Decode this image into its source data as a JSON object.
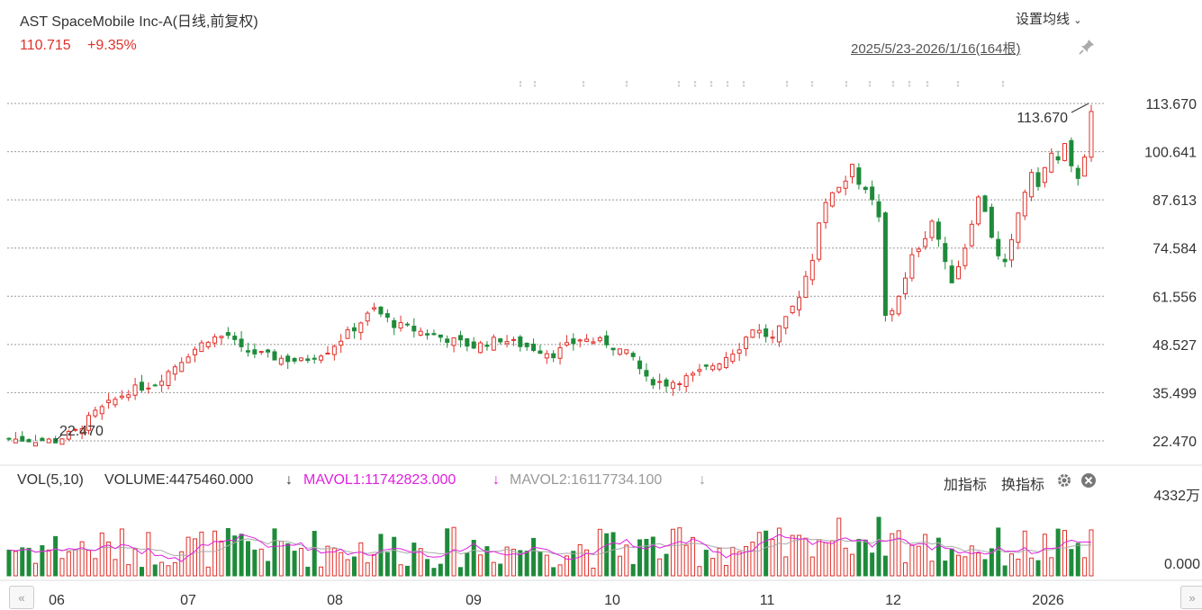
{
  "header": {
    "title": "AST SpaceMobile Inc-A(日线,前复权)",
    "price": "110.715",
    "change_pct": "+9.35%",
    "ma_setting": "设置均线",
    "range": "2025/5/23-2026/1/16(164根)"
  },
  "volume_panel": {
    "vol_label": "VOL(5,10)",
    "volume": "VOLUME:4475460.000",
    "mavol1": "MAVOL1:11742823.000",
    "mavol2": "MAVOL2:16117734.100",
    "add_indicator": "加指标",
    "switch_indicator": "换指标",
    "ymax_label": "4332万",
    "ymin_label": "0.000"
  },
  "colors": {
    "up": "#e0312a",
    "down": "#1e8b3a",
    "mavol1": "#e020e0",
    "mavol2": "#aaaaaa"
  },
  "chart_data": {
    "type": "candlestick",
    "y_ticks": [
      "113.670",
      "100.641",
      "87.613",
      "74.584",
      "61.556",
      "48.527",
      "35.499",
      "22.470"
    ],
    "ylim": [
      22.47,
      113.67
    ],
    "x_ticks": [
      "06",
      "07",
      "08",
      "09",
      "10",
      "11",
      "12",
      "2026"
    ],
    "annotations": {
      "high": "113.670",
      "low": "22.470"
    },
    "volume_ylim": [
      0,
      43320000
    ],
    "note_units": "volume in 万 (10k shares)"
  }
}
